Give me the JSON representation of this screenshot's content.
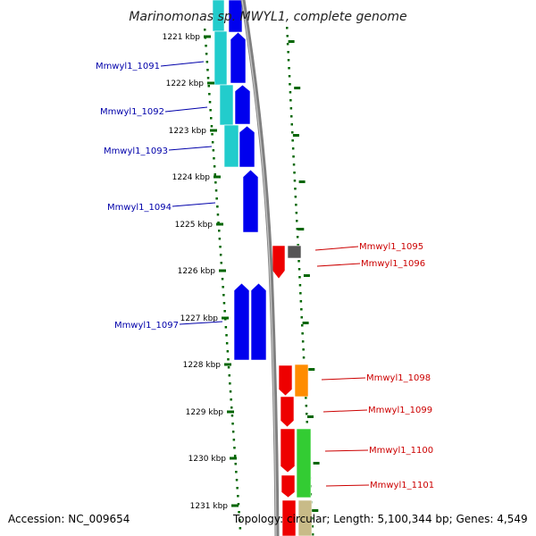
{
  "title": "Marinomonas sp. MWYL1, complete genome",
  "accession": "Accession: NC_009654",
  "summary": "Topology: circular; Length: 5,100,344 bp; Genes: 4,549",
  "colors": {
    "forward_cds": "#0000ee",
    "reverse_cds": "#ee0000",
    "cyan_track": "#22cccc",
    "orange_track": "#ff8c00",
    "green_track": "#33cc33",
    "tan_track": "#c8bb88",
    "gray_gene": "#555555",
    "backbone": "#808080",
    "tick": "#006600",
    "forward_label": "#0000aa",
    "reverse_label": "#cc0000"
  },
  "ticks": [
    {
      "label": "1221 kbp"
    },
    {
      "label": "1222 kbp"
    },
    {
      "label": "1223 kbp"
    },
    {
      "label": "1224 kbp"
    },
    {
      "label": "1225 kbp"
    },
    {
      "label": "1226 kbp"
    },
    {
      "label": "1227 kbp"
    },
    {
      "label": "1228 kbp"
    },
    {
      "label": "1229 kbp"
    },
    {
      "label": "1230 kbp"
    },
    {
      "label": "1231 kbp"
    }
  ],
  "genes": [
    {
      "label": "Mmwyl1_1091",
      "strand": "forward"
    },
    {
      "label": "Mmwyl1_1092",
      "strand": "forward"
    },
    {
      "label": "Mmwyl1_1093",
      "strand": "forward"
    },
    {
      "label": "Mmwyl1_1094",
      "strand": "forward"
    },
    {
      "label": "Mmwyl1_1095",
      "strand": "reverse"
    },
    {
      "label": "Mmwyl1_1096",
      "strand": "reverse"
    },
    {
      "label": "Mmwyl1_1097",
      "strand": "forward"
    },
    {
      "label": "Mmwyl1_1098",
      "strand": "reverse"
    },
    {
      "label": "Mmwyl1_1099",
      "strand": "reverse"
    },
    {
      "label": "Mmwyl1_1100",
      "strand": "reverse"
    },
    {
      "label": "Mmwyl1_1101",
      "strand": "reverse"
    }
  ]
}
